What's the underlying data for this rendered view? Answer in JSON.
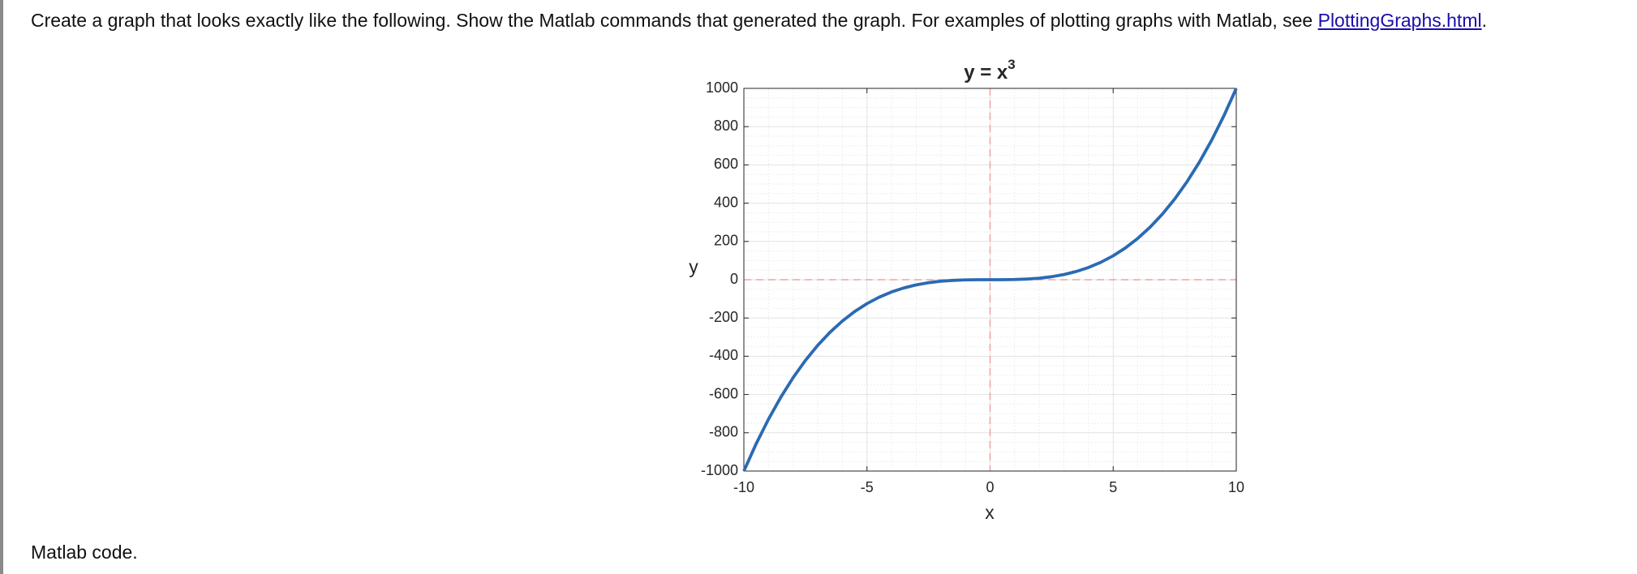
{
  "instruction": {
    "text": "Create a graph that looks exactly like the following. Show the Matlab commands that generated the graph. For examples of plotting graphs with Matlab, see ",
    "link": "PlottingGraphs.html",
    "end": "."
  },
  "chart_data": {
    "type": "line",
    "title": {
      "text": "y = x",
      "superscript": "3"
    },
    "xlabel": "x",
    "ylabel": "y",
    "x": [
      -10,
      -9.5,
      -9,
      -8.5,
      -8,
      -7.5,
      -7,
      -6.5,
      -6,
      -5.5,
      -5,
      -4.5,
      -4,
      -3.5,
      -3,
      -2.5,
      -2,
      -1.5,
      -1,
      -0.5,
      0,
      0.5,
      1,
      1.5,
      2,
      2.5,
      3,
      3.5,
      4,
      4.5,
      5,
      5.5,
      6,
      6.5,
      7,
      7.5,
      8,
      8.5,
      9,
      9.5,
      10
    ],
    "values": [
      -1000,
      -857.375,
      -729,
      -614.125,
      -512,
      -421.875,
      -343,
      -274.625,
      -216,
      -166.375,
      -125,
      -91.125,
      -64,
      -42.875,
      -27,
      -15.625,
      -8,
      -3.375,
      -1,
      -0.125,
      0,
      0.125,
      1,
      3.375,
      8,
      15.625,
      27,
      42.875,
      64,
      91.125,
      125,
      166.375,
      216,
      274.625,
      343,
      421.875,
      512,
      614.125,
      729,
      857.375,
      1000
    ],
    "color": "#2a6ab3",
    "xlim": [
      -10,
      10
    ],
    "xticks": [
      -10,
      -5,
      0,
      5,
      10
    ],
    "ylim": [
      -1000,
      1000
    ],
    "yticks": [
      -1000,
      -800,
      -600,
      -400,
      -200,
      0,
      200,
      400,
      600,
      800,
      1000
    ],
    "grid": true,
    "minor_grid": true,
    "reference_lines": {
      "x": 0,
      "y": 0,
      "color": "#f4a0a0"
    }
  },
  "footer": "Matlab code."
}
